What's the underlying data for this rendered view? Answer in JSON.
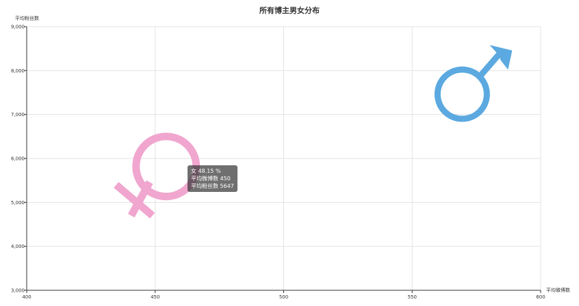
{
  "chart_data": {
    "type": "scatter",
    "title": "所有博主男女分布",
    "xlabel": "平均微博数",
    "ylabel": "平均粉丝数",
    "xlim": [
      400,
      600
    ],
    "ylim": [
      3000,
      9000
    ],
    "x_ticks": [
      "400",
      "450",
      "500",
      "550",
      "600"
    ],
    "y_ticks": [
      "3,000",
      "4,000",
      "5,000",
      "6,000",
      "7,000",
      "8,000",
      "9,000"
    ],
    "grid": true,
    "series": [
      {
        "name": "女",
        "symbol": "female-symbol-icon",
        "color": "#f0a6cf",
        "points": [
          {
            "x": 450,
            "y": 5647,
            "percent": "48.15 %"
          }
        ]
      },
      {
        "name": "男",
        "symbol": "male-symbol-icon",
        "color": "#5ba9e0",
        "points": [
          {
            "x": 570,
            "y": 7540
          }
        ]
      }
    ],
    "tooltip": {
      "line1": "女 48.15 %",
      "line2": "平均微博数 450",
      "line3": "平均粉丝数 5647"
    }
  }
}
